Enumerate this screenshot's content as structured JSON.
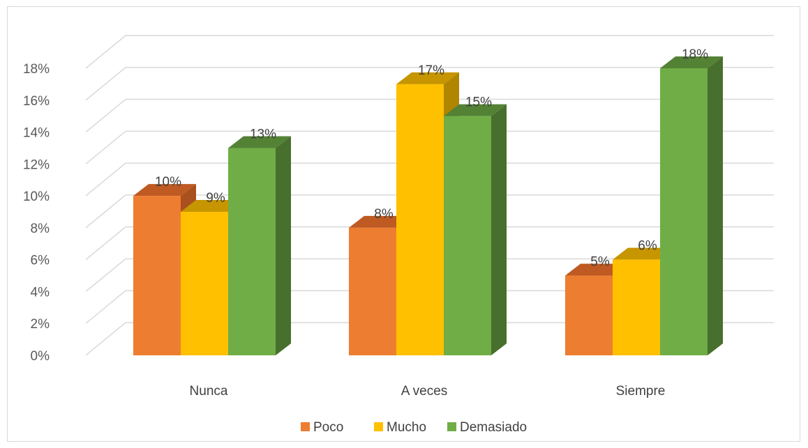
{
  "chart_data": {
    "type": "bar",
    "title": "",
    "xlabel": "",
    "ylabel": "",
    "categories": [
      "Nunca",
      "A veces",
      "Siempre"
    ],
    "series": [
      {
        "name": "Poco",
        "values": [
          10,
          8,
          5
        ],
        "labels": [
          "10%",
          "8%",
          "5%"
        ],
        "color": "#ED7D31",
        "top_color": "#BE5A22",
        "side_color": "#A9501E"
      },
      {
        "name": "Mucho",
        "values": [
          9,
          17,
          6
        ],
        "labels": [
          "9%",
          "17%",
          "6%"
        ],
        "color": "#FFC000",
        "top_color": "#C69500",
        "side_color": "#B08500"
      },
      {
        "name": "Demasiado",
        "values": [
          13,
          15,
          18
        ],
        "labels": [
          "13%",
          "15%",
          "18%"
        ],
        "color": "#70AD47",
        "top_color": "#548235",
        "side_color": "#476F2D"
      }
    ],
    "ylim": [
      0,
      18
    ],
    "yticks": [
      0,
      2,
      4,
      6,
      8,
      10,
      12,
      14,
      16,
      18
    ],
    "ytick_labels": [
      "0%",
      "2%",
      "4%",
      "6%",
      "8%",
      "10%",
      "12%",
      "14%",
      "16%",
      "18%"
    ],
    "grid": true,
    "legend_position": "bottom",
    "style": "3d-clustered-column"
  }
}
